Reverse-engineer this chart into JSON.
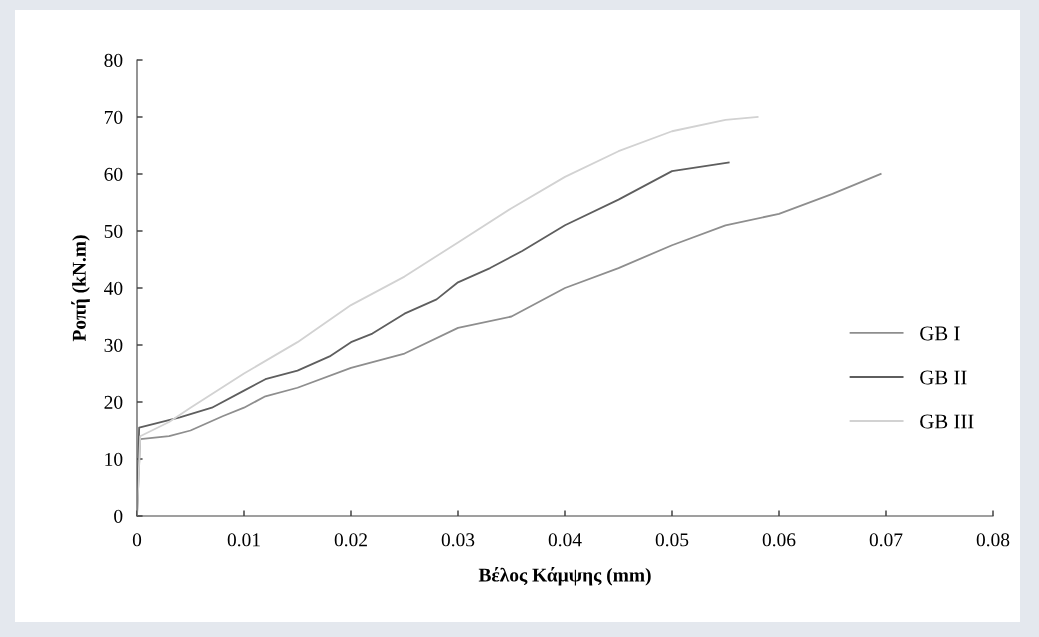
{
  "chart_data": {
    "type": "line",
    "xlabel": "Βέλος Κάμψης (mm)",
    "ylabel": "Ροπή (kN.m)",
    "xlim": [
      0,
      0.08
    ],
    "xticks": [
      {
        "value": 0,
        "label": "0"
      },
      0.01,
      0.02,
      0.03,
      0.04,
      0.05,
      0.06,
      0.07,
      0.08
    ],
    "ylim": [
      0,
      80
    ],
    "yticks": [
      0,
      10,
      20,
      30,
      40,
      50,
      60,
      70,
      80
    ],
    "grid": false,
    "legend": "right",
    "marker": "none",
    "line_style": "solid",
    "series": [
      {
        "name": "GB I",
        "color": "#8e8e8e",
        "x": [
          0,
          0.0003,
          0.003,
          0.005,
          0.008,
          0.01,
          0.012,
          0.015,
          0.02,
          0.025,
          0.03,
          0.035,
          0.04,
          0.045,
          0.05,
          0.055,
          0.06,
          0.065,
          0.0695
        ],
        "values": [
          0,
          13.5,
          14,
          15,
          17.5,
          19,
          21,
          22.5,
          26,
          28.5,
          33,
          35,
          40,
          43.5,
          47.5,
          51,
          53,
          56.5,
          60
        ]
      },
      {
        "name": "GB II",
        "color": "#5e5e5e",
        "x": [
          0,
          0.0002,
          0.004,
          0.007,
          0.01,
          0.012,
          0.015,
          0.018,
          0.02,
          0.022,
          0.025,
          0.028,
          0.03,
          0.033,
          0.036,
          0.04,
          0.045,
          0.05,
          0.0553
        ],
        "values": [
          0,
          15.5,
          17.3,
          19,
          22,
          24,
          25.5,
          28,
          30.5,
          32,
          35.5,
          38,
          41,
          43.5,
          46.5,
          51,
          55.5,
          60.5,
          62
        ]
      },
      {
        "name": "GB III",
        "color": "#d2d2d2",
        "x": [
          0,
          0.0003,
          0.003,
          0.005,
          0.01,
          0.015,
          0.02,
          0.025,
          0.03,
          0.035,
          0.04,
          0.045,
          0.05,
          0.055,
          0.058
        ],
        "values": [
          0,
          14,
          16.5,
          19,
          25,
          30.5,
          37,
          42,
          48,
          54,
          59.5,
          64,
          67.5,
          69.5,
          70
        ]
      }
    ]
  }
}
